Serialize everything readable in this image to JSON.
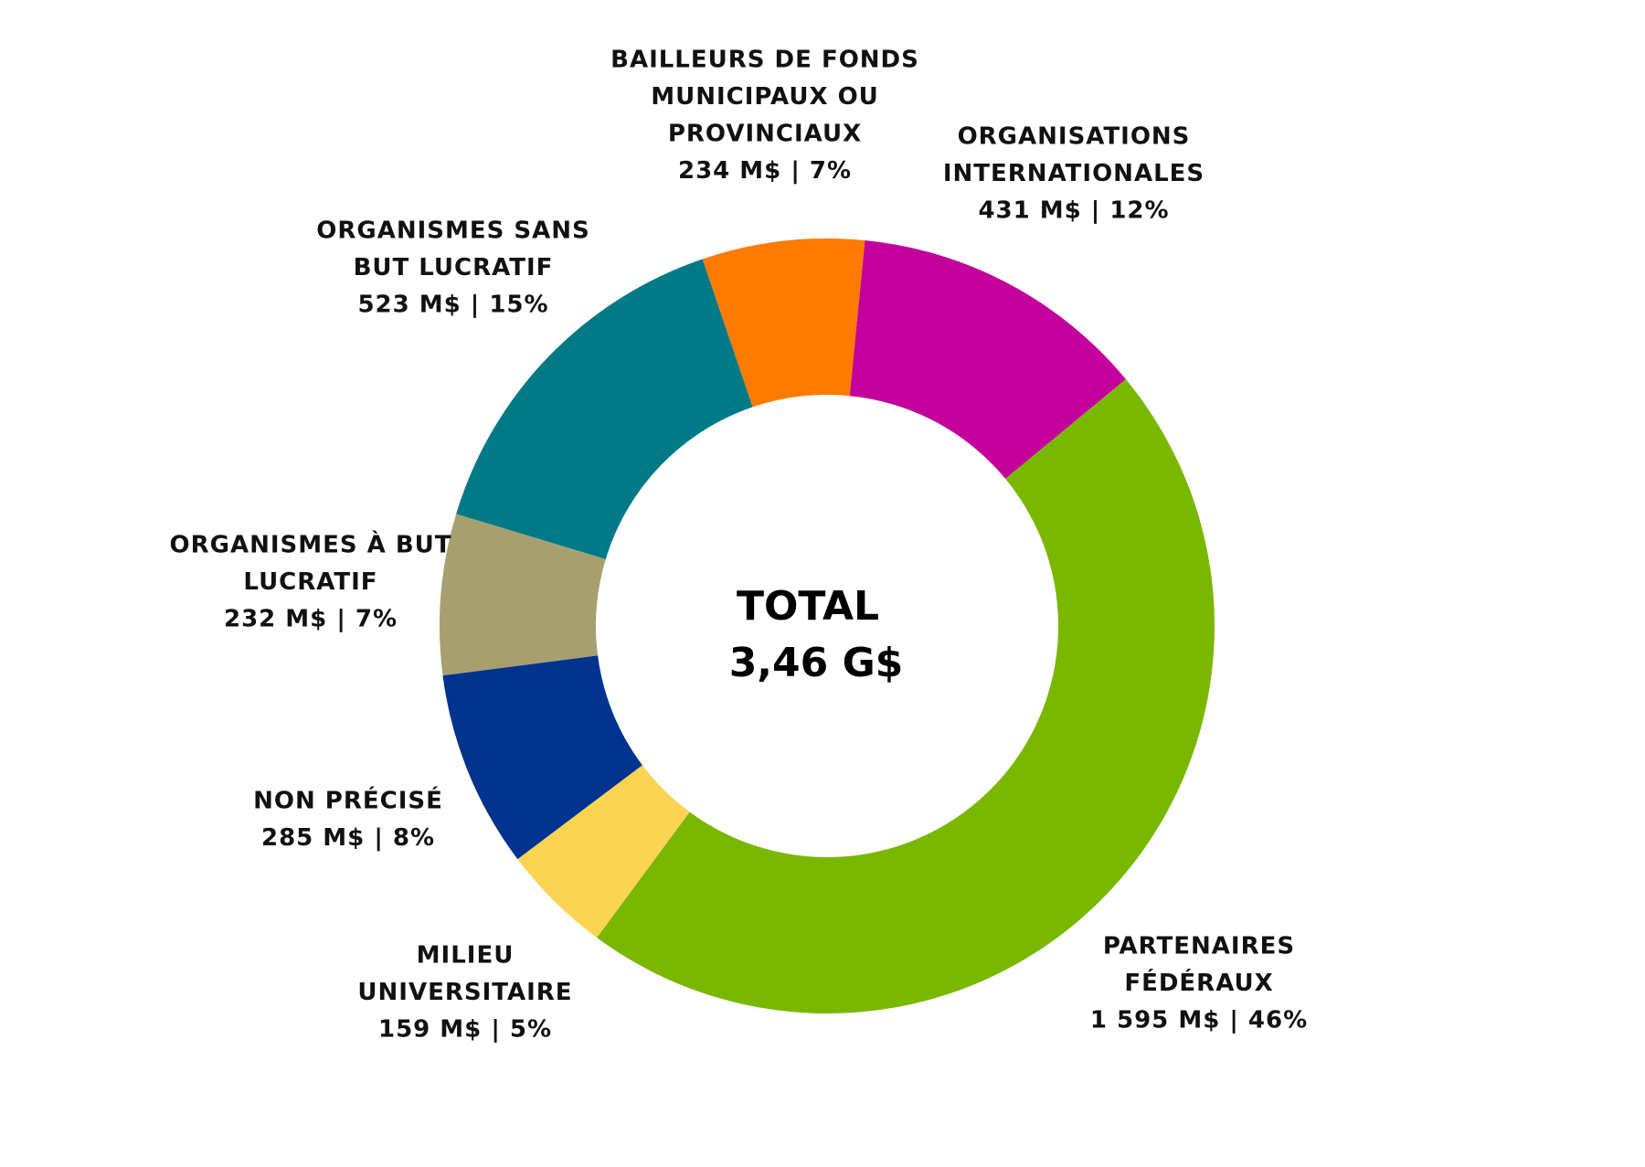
{
  "chart_data": {
    "type": "pie",
    "variant": "donut",
    "center_text": [
      "TOTAL",
      "3,46 G$"
    ],
    "unit": "M$",
    "direction": "clockwise",
    "slices": [
      {
        "label": [
          "ORGANISATIONS",
          "INTERNATIONALES"
        ],
        "value": 431,
        "value_text": "431 M$ | 12%",
        "percent": 12,
        "color": "#C4009C"
      },
      {
        "label": [
          "PARTENAIRES",
          "FÉDÉRAUX"
        ],
        "value": 1595,
        "value_text": "1 595 M$ | 46%",
        "percent": 46,
        "color": "#7AB800"
      },
      {
        "label": [
          "MILIEU",
          "UNIVERSITAIRE"
        ],
        "value": 159,
        "value_text": "159 M$ | 5%",
        "percent": 5,
        "color": "#FBD452"
      },
      {
        "label": [
          "NON PRÉCISÉ"
        ],
        "value": 285,
        "value_text": "285 M$ | 8%",
        "percent": 8,
        "color": "#00338D"
      },
      {
        "label": [
          "ORGANISMES À BUT",
          "LUCRATIF"
        ],
        "value": 232,
        "value_text": "232 M$ | 7%",
        "percent": 7,
        "color": "#A89F70"
      },
      {
        "label": [
          "ORGANISMES SANS",
          "BUT LUCRATIF"
        ],
        "value": 523,
        "value_text": "523 M$ | 15%",
        "percent": 15,
        "color": "#007A87"
      },
      {
        "label": [
          "BAILLEURS DE FONDS",
          "MUNICIPAUX OU",
          "PROVINCIAUX"
        ],
        "value": 234,
        "value_text": "234 M$ | 7%",
        "percent": 7,
        "color": "#FF7A00"
      }
    ]
  }
}
